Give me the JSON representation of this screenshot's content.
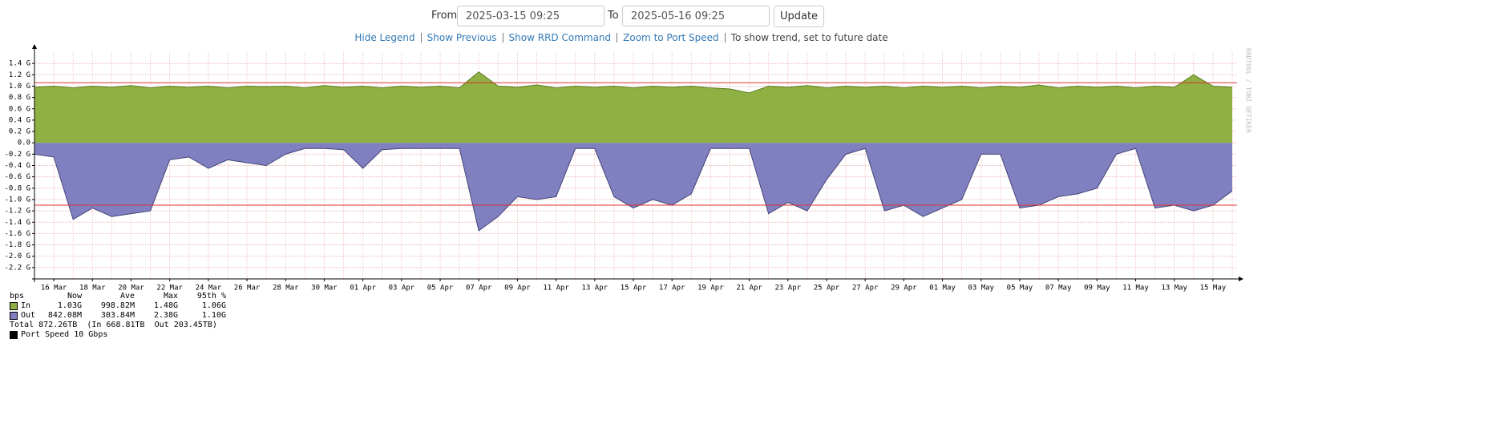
{
  "form": {
    "from_label": "From",
    "from_value": "2025-03-15 09:25",
    "to_label": "To",
    "to_value": "2025-05-16 09:25",
    "button": "Update"
  },
  "links": [
    "Hide Legend",
    "Show Previous",
    "Show RRD Command",
    "Zoom to Port Speed"
  ],
  "note": "To show trend, set to future date",
  "watermark": "RRDTOOL / TOBI OETIKER",
  "chart_data": {
    "type": "area",
    "categories": [
      null,
      "16 Mar",
      null,
      "18 Mar",
      null,
      "20 Mar",
      null,
      "22 Mar",
      null,
      "24 Mar",
      null,
      "26 Mar",
      null,
      "28 Mar",
      null,
      "30 Mar",
      null,
      "01 Apr",
      null,
      "03 Apr",
      null,
      "05 Apr",
      null,
      "07 Apr",
      null,
      "09 Apr",
      null,
      "11 Apr",
      null,
      "13 Apr",
      null,
      "15 Apr",
      null,
      "17 Apr",
      null,
      "19 Apr",
      null,
      "21 Apr",
      null,
      "23 Apr",
      null,
      "25 Apr",
      null,
      "27 Apr",
      null,
      "29 Apr",
      null,
      "01 May",
      null,
      "03 May",
      null,
      "05 May",
      null,
      "07 May",
      null,
      "09 May",
      null,
      "11 May",
      null,
      "13 May",
      null,
      "15 May",
      null
    ],
    "series": [
      {
        "name": "In",
        "color": "#8fb143",
        "line_color": "#5a7d1e",
        "values": [
          0.98,
          1.0,
          0.97,
          1.0,
          0.98,
          1.01,
          0.97,
          1.0,
          0.98,
          1.0,
          0.97,
          1.0,
          0.99,
          1.0,
          0.97,
          1.01,
          0.98,
          1.0,
          0.97,
          1.0,
          0.98,
          1.0,
          0.97,
          1.25,
          1.0,
          0.98,
          1.02,
          0.97,
          1.0,
          0.98,
          1.0,
          0.97,
          1.0,
          0.98,
          1.0,
          0.97,
          0.95,
          0.88,
          1.0,
          0.98,
          1.01,
          0.97,
          1.0,
          0.98,
          1.0,
          0.97,
          1.0,
          0.98,
          1.0,
          0.97,
          1.0,
          0.98,
          1.02,
          0.97,
          1.0,
          0.98,
          1.0,
          0.97,
          1.0,
          0.98,
          1.2,
          1.0,
          0.98
        ]
      },
      {
        "name": "Out",
        "color": "#8080c0",
        "line_color": "#44447a",
        "values": [
          -0.2,
          -0.25,
          -1.35,
          -1.15,
          -1.3,
          -1.25,
          -1.2,
          -0.3,
          -0.25,
          -0.45,
          -0.3,
          -0.35,
          -0.4,
          -0.2,
          -0.1,
          -0.1,
          -0.12,
          -0.45,
          -0.12,
          -0.1,
          -0.1,
          -0.1,
          -0.1,
          -1.55,
          -1.3,
          -0.95,
          -1.0,
          -0.95,
          -0.1,
          -0.1,
          -0.95,
          -1.15,
          -1.0,
          -1.1,
          -0.9,
          -0.1,
          -0.1,
          -0.1,
          -1.25,
          -1.05,
          -1.2,
          -0.65,
          -0.2,
          -0.1,
          -1.2,
          -1.1,
          -1.3,
          -1.15,
          -1.0,
          -0.2,
          -0.2,
          -1.15,
          -1.1,
          -0.95,
          -0.9,
          -0.8,
          -0.2,
          -0.1,
          -1.15,
          -1.1,
          -1.2,
          -1.1,
          -0.85
        ]
      }
    ],
    "ylim": [
      -2.4,
      1.6
    ],
    "yticks": [
      {
        "value": 1.4,
        "label": "1.4 G"
      },
      {
        "value": 1.2,
        "label": "1.2 G"
      },
      {
        "value": 1.0,
        "label": "1.0 G"
      },
      {
        "value": 0.8,
        "label": "0.8 G"
      },
      {
        "value": 0.6,
        "label": "0.6 G"
      },
      {
        "value": 0.4,
        "label": "0.4 G"
      },
      {
        "value": 0.2,
        "label": "0.2 G"
      },
      {
        "value": 0,
        "label": "0.0"
      },
      {
        "value": -0.2,
        "label": "-0.2 G"
      },
      {
        "value": -0.4,
        "label": "-0.4 G"
      },
      {
        "value": -0.6,
        "label": "-0.6 G"
      },
      {
        "value": -0.8,
        "label": "-0.8 G"
      },
      {
        "value": -1.0,
        "label": "-1.0 G"
      },
      {
        "value": -1.2,
        "label": "-1.2 G"
      },
      {
        "value": -1.4,
        "label": "-1.4 G"
      },
      {
        "value": -1.6,
        "label": "-1.6 G"
      },
      {
        "value": -1.8,
        "label": "-1.8 G"
      },
      {
        "value": -2.0,
        "label": "-2.0 G"
      },
      {
        "value": -2.2,
        "label": "-2.2 G"
      }
    ],
    "grid": true,
    "hlines": [
      {
        "value": 1.06,
        "color": "#e03030"
      },
      {
        "value": -1.1,
        "color": "#e03030"
      }
    ]
  },
  "legend_table": {
    "header": [
      "bps",
      "Now",
      "Ave",
      "Max",
      "95th %"
    ],
    "rows": [
      [
        "1.03G",
        "998.82M",
        "1.48G",
        "1.06G"
      ],
      [
        "842.08M",
        "303.84M",
        "2.38G",
        "1.10G"
      ]
    ],
    "total": "Total 872.26TB  (In 668.81TB  Out 203.45TB)",
    "port_speed": "Port Speed 10 Gbps"
  }
}
